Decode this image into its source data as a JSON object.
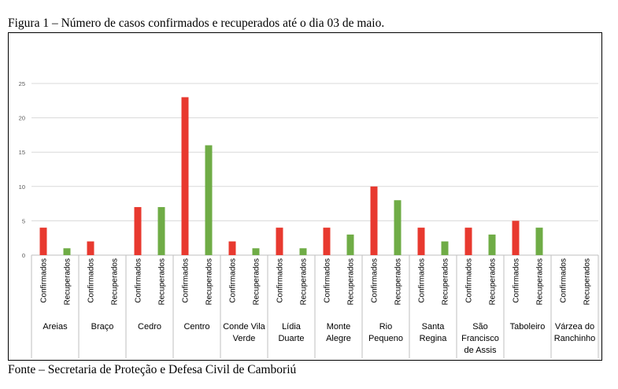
{
  "caption": "Figura 1 – Número de casos confirmados e recuperados até o dia 03 de maio.",
  "source": "Fonte – Secretaria de Proteção e Defesa Civil de Camboriú",
  "chart_data": {
    "type": "bar",
    "title": "",
    "xlabel": "",
    "ylabel": "",
    "ylim": [
      0,
      25
    ],
    "yticks": [
      0,
      5,
      10,
      15,
      20,
      25
    ],
    "grid": true,
    "legend": "none",
    "categories": [
      [
        "Areias"
      ],
      [
        "Braço"
      ],
      [
        "Cedro"
      ],
      [
        "Centro"
      ],
      [
        "Conde Vila",
        "Verde"
      ],
      [
        "Lídia",
        "Duarte"
      ],
      [
        "Monte",
        "Alegre"
      ],
      [
        "Rio",
        "Pequeno"
      ],
      [
        "Santa",
        "Regina"
      ],
      [
        "São",
        "Francisco",
        "de Assis"
      ],
      [
        "Taboleiro"
      ],
      [
        "Várzea do",
        "Ranchinho"
      ]
    ],
    "series": [
      {
        "name": "Confirmados",
        "color": "#e8392f",
        "values": [
          4,
          2,
          7,
          23,
          2,
          4,
          4,
          10,
          4,
          4,
          5,
          0
        ]
      },
      {
        "name": "Recuperados",
        "color": "#6fac46",
        "values": [
          1,
          0,
          7,
          16,
          1,
          1,
          3,
          8,
          2,
          3,
          4,
          0
        ]
      }
    ]
  }
}
